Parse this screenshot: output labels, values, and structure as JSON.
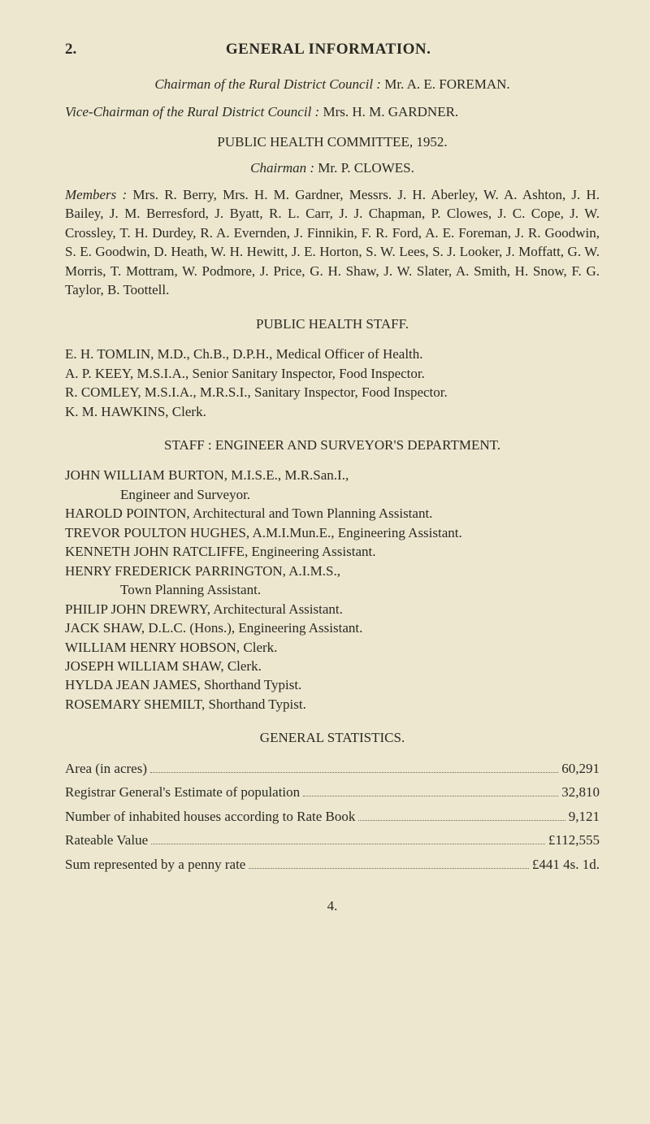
{
  "section_number": "2.",
  "section_title": "GENERAL INFORMATION.",
  "chairman_label": "Chairman of the Rural District Council :",
  "chairman_name": "Mr. A. E. FOREMAN.",
  "vice_label": "Vice-Chairman of the Rural District Council :",
  "vice_name": "Mrs. H. M. GARDNER.",
  "phc_title": "PUBLIC HEALTH COMMITTEE, 1952.",
  "phc_chairman_label": "Chairman :",
  "phc_chairman_name": "Mr. P. CLOWES.",
  "members_label": "Members :",
  "members_text": "Mrs. R. Berry, Mrs. H. M. Gardner, Messrs. J. H. Aberley, W. A. Ashton, J. H. Bailey, J. M. Berresford, J. Byatt, R. L. Carr, J. J. Chapman, P. Clowes, J. C. Cope, J. W. Crossley, T. H. Durdey, R. A. Evernden, J. Finnikin, F. R. Ford, A. E. Foreman, J. R. Goodwin, S. E. Goodwin, D. Heath, W. H. Hewitt, J. E. Horton, S. W. Lees, S. J. Looker, J. Moffatt, G. W. Morris, T. Mottram, W. Podmore, J. Price, G. H. Shaw, J. W. Slater, A. Smith, H. Snow, F. G. Taylor, B. Toottell.",
  "ph_staff_title": "PUBLIC HEALTH STAFF.",
  "ph_staff": [
    "E. H. TOMLIN, M.D., Ch.B., D.P.H., Medical Officer of Health.",
    "A. P. KEEY, M.S.I.A., Senior Sanitary Inspector, Food Inspector.",
    "R. COMLEY, M.S.I.A., M.R.S.I., Sanitary Inspector, Food Inspector.",
    "K. M. HAWKINS, Clerk."
  ],
  "staff_es_title": "STAFF : ENGINEER AND SURVEYOR'S DEPARTMENT.",
  "es_lines": [
    {
      "t": "JOHN WILLIAM BURTON, M.I.S.E., M.R.San.I.,"
    },
    {
      "t": "Engineer and Surveyor.",
      "indent": true
    },
    {
      "t": "HAROLD POINTON, Architectural and Town Planning Assistant."
    },
    {
      "t": "TREVOR POULTON HUGHES, A.M.I.Mun.E., Engineering Assistant."
    },
    {
      "t": "KENNETH JOHN RATCLIFFE, Engineering Assistant."
    },
    {
      "t": "HENRY FREDERICK PARRINGTON, A.I.M.S.,"
    },
    {
      "t": "Town Planning Assistant.",
      "indent": true
    },
    {
      "t": "PHILIP JOHN DREWRY, Architectural Assistant."
    },
    {
      "t": "JACK SHAW, D.L.C. (Hons.), Engineering Assistant."
    },
    {
      "t": "WILLIAM HENRY HOBSON, Clerk."
    },
    {
      "t": "JOSEPH WILLIAM SHAW, Clerk."
    },
    {
      "t": "HYLDA JEAN JAMES, Shorthand Typist."
    },
    {
      "t": "ROSEMARY SHEMILT, Shorthand Typist."
    }
  ],
  "stats_title": "GENERAL STATISTICS.",
  "stats": [
    {
      "label": "Area (in acres)",
      "value": "60,291"
    },
    {
      "label": "Registrar General's Estimate of population",
      "value": "32,810"
    },
    {
      "label": "Number of inhabited houses according to Rate Book",
      "value": "9,121"
    },
    {
      "label": "Rateable Value",
      "value": "£112,555"
    },
    {
      "label": "Sum represented by a penny rate",
      "value": "£441 4s. 1d."
    }
  ],
  "page_number": "4."
}
